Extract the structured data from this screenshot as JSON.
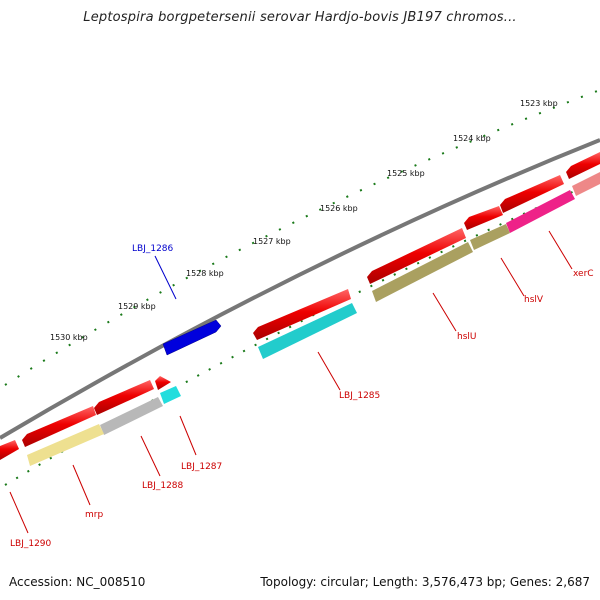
{
  "title": "Leptospira borgpetersenii serovar Hardjo-bovis JB197 chromos...",
  "footer": {
    "accession": "Accession: NC_008510",
    "summary": "Topology: circular; Length: 3,576,473 bp; Genes: 2,687"
  },
  "ticks": [
    "1523 kbp",
    "1524 kbp",
    "1525 kbp",
    "1526 kbp",
    "1527 kbp",
    "1528 kbp",
    "1529 kbp",
    "1530 kbp"
  ],
  "gene_labels": [
    {
      "text": "LBJ_1286",
      "color": "#0000cc"
    },
    {
      "text": "LBJ_1285",
      "color": "#cc0000"
    },
    {
      "text": "hslU",
      "color": "#cc0000"
    },
    {
      "text": "hslV",
      "color": "#cc0000"
    },
    {
      "text": "xerC",
      "color": "#cc0000"
    },
    {
      "text": "LBJ_1287",
      "color": "#cc0000"
    },
    {
      "text": "LBJ_1288",
      "color": "#cc0000"
    },
    {
      "text": "mrp",
      "color": "#cc0000"
    },
    {
      "text": "LBJ_1290",
      "color": "#cc0000"
    }
  ],
  "colors": {
    "cds": "#ee0000",
    "backbone": "#777777",
    "tick": "#1a7a1a",
    "cog_teal": "#22cccc",
    "cog_olive": "#aaa060",
    "cog_pink": "#ee2288",
    "cog_yellow": "#eee090",
    "cog_gray": "#b8b8b8",
    "forward_blue": "#0000dd"
  }
}
